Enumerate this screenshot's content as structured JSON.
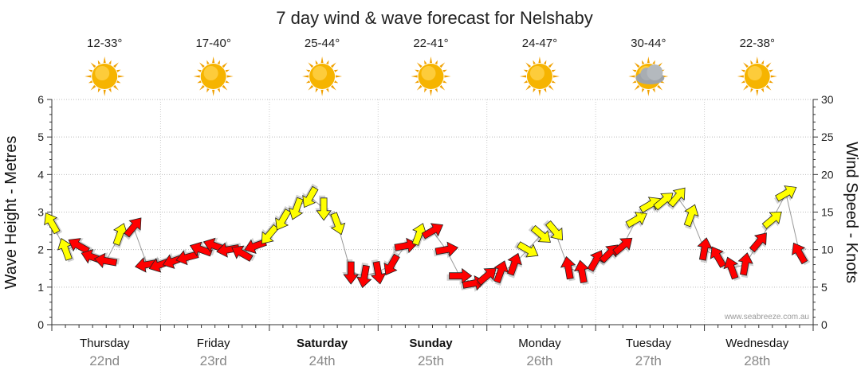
{
  "chart_data": {
    "type": "line",
    "title": "7 day wind & wave forecast for Nelshaby",
    "ylabel_left": "Wave Height - Metres",
    "ylabel_right": "Wind Speed - Knots",
    "ylim_left": [
      0,
      6
    ],
    "ylim_right": [
      0,
      30
    ],
    "yticks_left": [
      "0",
      "1",
      "2",
      "3",
      "4",
      "5",
      "6"
    ],
    "yticks_right": [
      "0",
      "5",
      "10",
      "15",
      "20",
      "25",
      "30"
    ],
    "days": [
      {
        "name": "Thursday",
        "date": "22nd",
        "temp": "12-33°",
        "weather": "sunny",
        "bold": false
      },
      {
        "name": "Friday",
        "date": "23rd",
        "temp": "17-40°",
        "weather": "sunny",
        "bold": false
      },
      {
        "name": "Saturday",
        "date": "24th",
        "temp": "25-44°",
        "weather": "sunny",
        "bold": true
      },
      {
        "name": "Sunday",
        "date": "25th",
        "temp": "22-41°",
        "weather": "sunny",
        "bold": true
      },
      {
        "name": "Monday",
        "date": "26th",
        "temp": "24-47°",
        "weather": "sunny",
        "bold": false
      },
      {
        "name": "Tuesday",
        "date": "27th",
        "temp": "30-44°",
        "weather": "partly-cloudy",
        "bold": false
      },
      {
        "name": "Wednesday",
        "date": "28th",
        "temp": "22-38°",
        "weather": "sunny",
        "bold": false
      }
    ],
    "credit": "www.seabreeze.com.au",
    "colors": {
      "strong": "#ff0000",
      "moderate": "#ffff00",
      "border": "#222222",
      "sun": "#f5a300"
    },
    "series": [
      {
        "name": "Wind Speed",
        "hours": [
          0,
          3,
          6,
          9,
          12,
          15,
          18,
          21,
          24,
          27,
          30,
          33,
          36,
          39,
          42,
          45,
          48,
          51,
          54,
          57,
          60,
          63,
          66,
          69,
          72,
          75,
          78,
          81,
          84,
          87,
          90,
          93,
          96,
          99,
          102,
          105,
          108,
          111,
          114,
          117,
          120,
          123,
          126,
          129,
          132,
          135,
          138,
          141,
          144,
          147,
          150,
          153,
          156,
          159,
          162,
          165
        ],
        "speed": [
          13.5,
          10,
          10.5,
          9,
          8.5,
          12,
          13,
          8,
          8,
          8.5,
          9,
          10,
          10.5,
          10,
          9.5,
          10.5,
          12,
          14,
          15.5,
          17,
          15.5,
          13.5,
          7,
          6.5,
          7,
          8,
          10.5,
          12,
          12.5,
          10,
          6.5,
          5.5,
          6.5,
          7,
          8,
          10,
          12,
          12.5,
          7.5,
          7,
          8.5,
          9.5,
          10.5,
          14,
          16,
          16.5,
          17,
          14.5,
          10,
          9,
          7.5,
          8,
          11,
          14,
          17.5,
          9.5
        ],
        "direction_deg": [
          330,
          340,
          300,
          290,
          280,
          20,
          40,
          260,
          250,
          250,
          255,
          290,
          290,
          260,
          300,
          250,
          220,
          210,
          200,
          210,
          180,
          160,
          180,
          190,
          170,
          210,
          80,
          20,
          60,
          80,
          90,
          80,
          50,
          20,
          20,
          120,
          130,
          140,
          350,
          350,
          30,
          45,
          50,
          60,
          60,
          50,
          40,
          20,
          10,
          330,
          340,
          10,
          40,
          50,
          60,
          330
        ],
        "level": [
          "m",
          "m",
          "s",
          "s",
          "s",
          "m",
          "s",
          "s",
          "s",
          "s",
          "s",
          "s",
          "s",
          "s",
          "s",
          "s",
          "m",
          "m",
          "m",
          "m",
          "m",
          "m",
          "s",
          "s",
          "s",
          "s",
          "s",
          "m",
          "s",
          "s",
          "s",
          "s",
          "s",
          "s",
          "s",
          "m",
          "m",
          "m",
          "s",
          "s",
          "s",
          "s",
          "s",
          "m",
          "m",
          "m",
          "m",
          "m",
          "s",
          "s",
          "s",
          "s",
          "s",
          "m",
          "m",
          "s"
        ]
      }
    ]
  }
}
